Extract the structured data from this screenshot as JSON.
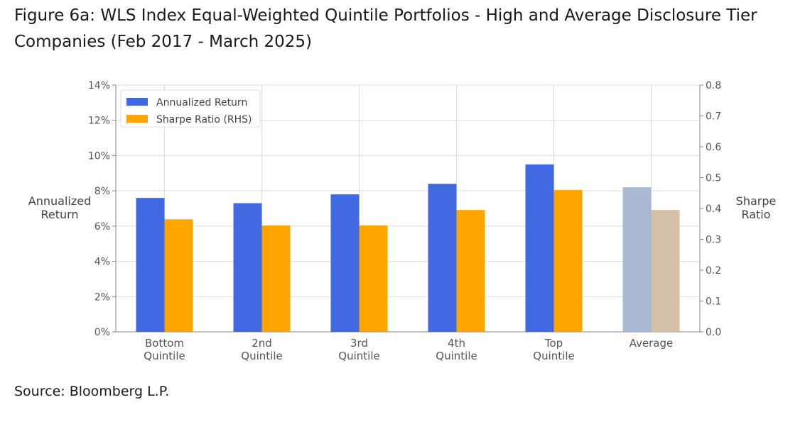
{
  "figure": {
    "title": "Figure 6a: WLS Index Equal-Weighted Quintile Portfolios - High and Average Disclosure Tier Companies (Feb 2017 - March 2025)",
    "source": "Source: Bloomberg L.P."
  },
  "chart_data": {
    "type": "bar",
    "categories": [
      [
        "Bottom",
        "Quintile"
      ],
      [
        "2nd",
        "Quintile"
      ],
      [
        "3rd",
        "Quintile"
      ],
      [
        "4th",
        "Quintile"
      ],
      [
        "Top",
        "Quintile"
      ],
      [
        "Average"
      ]
    ],
    "series": [
      {
        "name": "Annualized Return",
        "axis": "left",
        "unit": "%",
        "values": [
          7.6,
          7.3,
          7.8,
          8.4,
          9.5,
          8.2
        ],
        "color": "#4169e1",
        "highlight_colors": {
          "5": "#a9b8d3"
        }
      },
      {
        "name": "Sharpe Ratio (RHS)",
        "axis": "right",
        "values": [
          0.365,
          0.345,
          0.345,
          0.395,
          0.46,
          0.395
        ],
        "color": "#ffa500",
        "highlight_colors": {
          "5": "#d4c0a7"
        }
      }
    ],
    "ylabel_left": [
      "Annualized",
      "Return"
    ],
    "ylabel_right": [
      "Sharpe",
      "Ratio"
    ],
    "ylim_left": [
      0,
      14
    ],
    "yticks_left": [
      "0%",
      "2%",
      "4%",
      "6%",
      "8%",
      "10%",
      "12%",
      "14%"
    ],
    "ylim_right": [
      0,
      0.8
    ],
    "yticks_right": [
      "0.0",
      "0.1",
      "0.2",
      "0.3",
      "0.4",
      "0.5",
      "0.6",
      "0.7",
      "0.8"
    ],
    "grid": true,
    "legend_position": "top-left"
  }
}
